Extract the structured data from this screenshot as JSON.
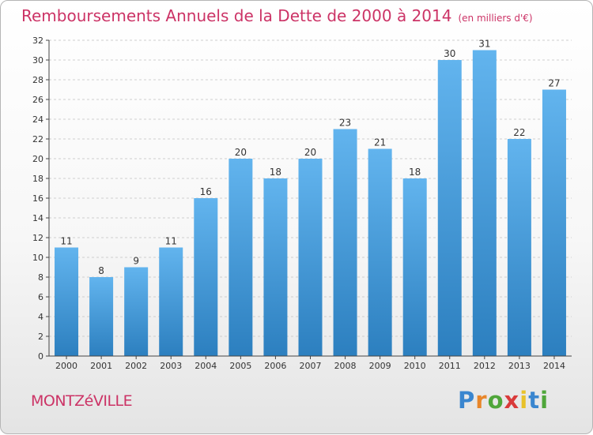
{
  "title": "Remboursements Annuels de la Dette de 2000 à 2014",
  "unit": "(en milliers d'€)",
  "location": "MONTZéVILLE",
  "brand": "Proxiti",
  "colors": {
    "title": "#cc3366",
    "bar_top": "#62b4ee",
    "bar_bottom": "#2c7fbf",
    "grid": "#cfcfcf",
    "axis": "#444444",
    "text": "#333333"
  },
  "chart_data": {
    "type": "bar",
    "title": "Remboursements Annuels de la Dette de 2000 à 2014",
    "categories": [
      "2000",
      "2001",
      "2002",
      "2003",
      "2004",
      "2005",
      "2006",
      "2007",
      "2008",
      "2009",
      "2010",
      "2011",
      "2012",
      "2013",
      "2014"
    ],
    "values": [
      11,
      8,
      9,
      11,
      16,
      20,
      18,
      20,
      23,
      21,
      18,
      30,
      31,
      22,
      27
    ],
    "data_labels": [
      "11",
      "8",
      "9",
      "11",
      "16",
      "20",
      "18",
      "20",
      "23",
      "21",
      "18",
      "30",
      "31",
      "22",
      "27"
    ],
    "ylim": [
      0,
      32
    ],
    "ytick_step": 2,
    "grid": "horizontal dashed",
    "legend": "none"
  }
}
